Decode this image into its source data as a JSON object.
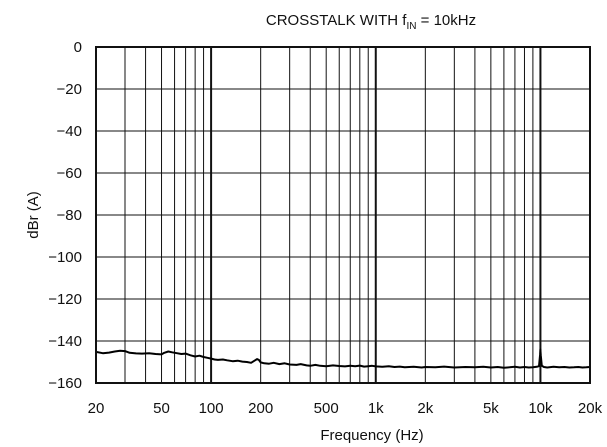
{
  "chart_data": {
    "type": "line",
    "title": {
      "prefix": "CROSSTALK WITH f",
      "subscript": "IN",
      "suffix": " = 10kHz"
    },
    "xlabel": "Frequency (Hz)",
    "ylabel": "dBr (A)",
    "x_scale": "log",
    "xlim": [
      20,
      20000
    ],
    "ylim": [
      -160,
      0
    ],
    "grid": true,
    "x_ticks": [
      {
        "value": 20,
        "label": "20"
      },
      {
        "value": 50,
        "label": "50"
      },
      {
        "value": 100,
        "label": "100"
      },
      {
        "value": 200,
        "label": "200"
      },
      {
        "value": 500,
        "label": "500"
      },
      {
        "value": 1000,
        "label": "1k"
      },
      {
        "value": 2000,
        "label": "2k"
      },
      {
        "value": 5000,
        "label": "5k"
      },
      {
        "value": 10000,
        "label": "10k"
      },
      {
        "value": 20000,
        "label": "20k"
      }
    ],
    "y_ticks": [
      {
        "value": 0,
        "label": "0"
      },
      {
        "value": -20,
        "label": "−20"
      },
      {
        "value": -40,
        "label": "−40"
      },
      {
        "value": -60,
        "label": "−60"
      },
      {
        "value": -80,
        "label": "−80"
      },
      {
        "value": -100,
        "label": "−100"
      },
      {
        "value": -120,
        "label": "−120"
      },
      {
        "value": -140,
        "label": "−140"
      },
      {
        "value": -160,
        "label": "−160"
      }
    ],
    "series": [
      {
        "color": "#000000",
        "x": [
          20,
          22,
          24,
          26,
          28,
          30,
          32,
          35,
          38,
          42,
          46,
          50,
          52,
          55,
          58,
          62,
          66,
          70,
          75,
          80,
          85,
          90,
          95,
          100,
          105,
          110,
          118,
          125,
          135,
          145,
          155,
          165,
          175,
          185,
          190,
          195,
          200,
          210,
          225,
          240,
          260,
          280,
          300,
          330,
          350,
          380,
          400,
          430,
          460,
          500,
          550,
          600,
          650,
          700,
          750,
          800,
          850,
          900,
          950,
          1000,
          1100,
          1200,
          1300,
          1400,
          1500,
          1700,
          1900,
          2000,
          2300,
          2600,
          3000,
          3500,
          4000,
          4500,
          5000,
          5500,
          6000,
          6500,
          7000,
          7500,
          8000,
          8500,
          9000,
          9500,
          9800,
          9950,
          10000,
          10050,
          10200,
          10500,
          11000,
          12000,
          13000,
          14000,
          15000,
          16000,
          17000,
          18000,
          19000,
          20000
        ],
        "y": [
          -145.2,
          -145.8,
          -145.5,
          -145.0,
          -144.6,
          -144.8,
          -145.6,
          -145.9,
          -146.0,
          -145.8,
          -146.2,
          -146.4,
          -145.6,
          -145.0,
          -145.4,
          -145.8,
          -146.2,
          -146.0,
          -146.8,
          -147.4,
          -147.0,
          -147.6,
          -148.0,
          -148.4,
          -148.8,
          -149.0,
          -148.8,
          -149.2,
          -149.6,
          -149.4,
          -149.8,
          -150.0,
          -150.4,
          -149.2,
          -148.6,
          -149.0,
          -150.2,
          -150.6,
          -150.8,
          -150.4,
          -151.0,
          -150.6,
          -151.2,
          -151.4,
          -151.0,
          -151.6,
          -151.8,
          -151.4,
          -151.8,
          -152.0,
          -151.6,
          -151.9,
          -152.1,
          -151.8,
          -152.0,
          -151.7,
          -152.2,
          -152.0,
          -151.8,
          -152.1,
          -152.3,
          -152.0,
          -152.4,
          -152.2,
          -152.5,
          -152.3,
          -152.6,
          -152.4,
          -152.5,
          -152.2,
          -152.6,
          -152.4,
          -152.5,
          -152.3,
          -152.6,
          -152.4,
          -152.7,
          -152.5,
          -152.3,
          -152.6,
          -152.4,
          -152.6,
          -152.5,
          -152.3,
          -152.0,
          -146.5,
          -144.0,
          -147.0,
          -151.8,
          -152.4,
          -152.6,
          -152.3,
          -152.5,
          -152.4,
          -152.6,
          -152.5,
          -152.4,
          -152.6,
          -152.5,
          -152.4
        ]
      }
    ]
  }
}
